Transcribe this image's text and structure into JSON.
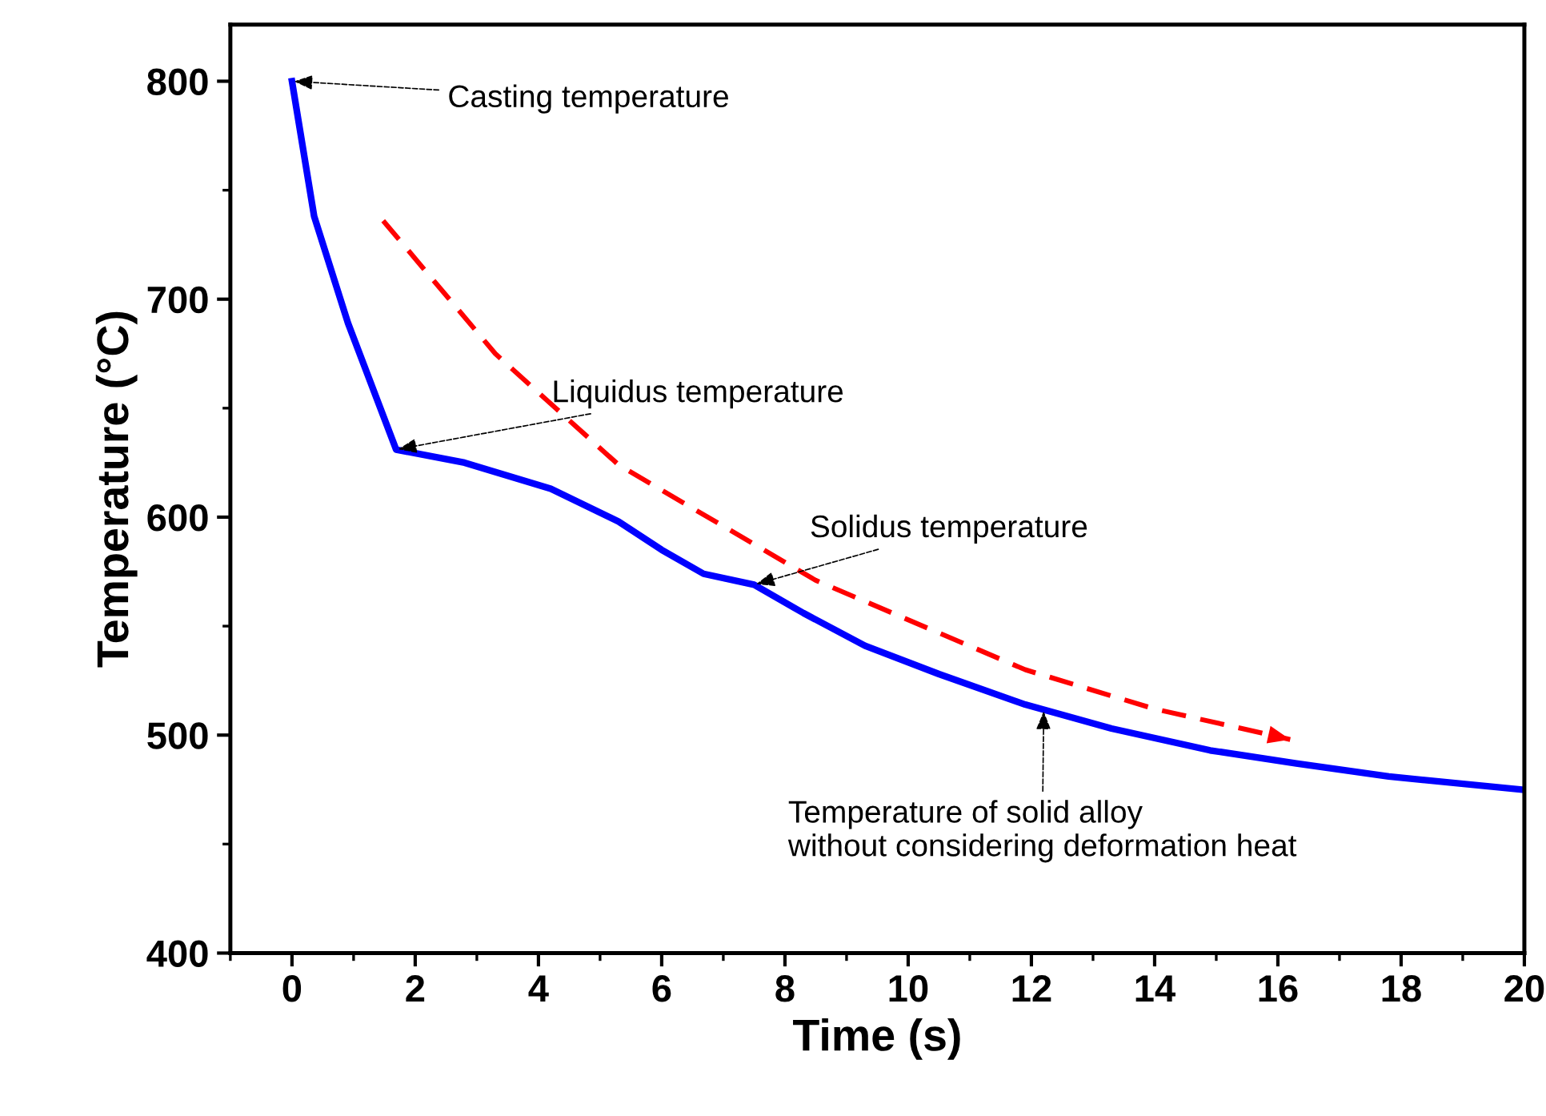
{
  "chart_data": {
    "type": "line",
    "xlabel": "Time (s)",
    "ylabel": "Temperature (°C)",
    "xlim": [
      -1,
      20
    ],
    "ylim": [
      400,
      826
    ],
    "xticks": [
      0,
      2,
      4,
      6,
      8,
      10,
      12,
      14,
      16,
      18,
      20
    ],
    "yticks": [
      400,
      500,
      600,
      700,
      800
    ],
    "grid": false,
    "legend": false,
    "marker": "none",
    "series": [
      {
        "color": "#0000ff",
        "line_style": "solid",
        "x": [
          0,
          0.36,
          0.91,
          1.69,
          2.8,
          4.2,
          5.3,
          6.0,
          6.68,
          7.5,
          8.3,
          9.3,
          10.5,
          11.9,
          13.3,
          14.9,
          16.3,
          17.8,
          19.95
        ],
        "values": [
          800,
          738,
          689,
          631,
          625,
          613,
          598,
          585,
          574,
          569,
          556,
          541,
          528,
          514,
          503,
          493,
          487,
          481,
          475
        ]
      },
      {
        "color": "#ff0000",
        "line_style": "dashed",
        "x": [
          1.48,
          3.3,
          5.3,
          8.5,
          11.9,
          14.0,
          16.2
        ],
        "values": [
          736,
          675,
          624,
          571,
          530,
          512,
          498
        ]
      }
    ],
    "annotations": [
      {
        "text": "Casting temperature",
        "x": 0,
        "y": 800
      },
      {
        "text": "Liquidus temperature",
        "x": 1.69,
        "y": 631
      },
      {
        "text": "Solidus temperature",
        "x": 7.5,
        "y": 569
      },
      {
        "text": "Temperature of solid alloy\nwithout considering deformation heat",
        "x": 12.2,
        "y": 512
      }
    ]
  }
}
